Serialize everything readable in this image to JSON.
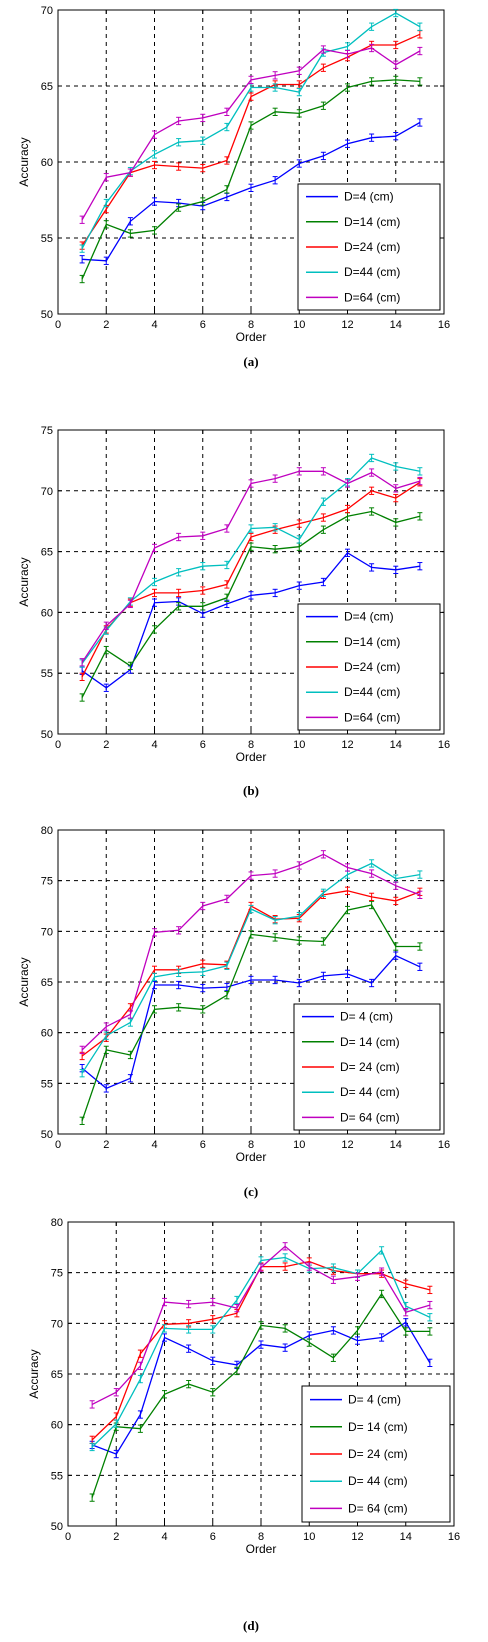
{
  "chart_data": [
    {
      "type": "line",
      "caption": "(a)",
      "xlabel": "Order",
      "ylabel": "Accuracy",
      "xlim": [
        0,
        16
      ],
      "ylim": [
        50,
        70
      ],
      "xticks": [
        0,
        2,
        4,
        6,
        8,
        10,
        12,
        14,
        16
      ],
      "yticks": [
        50,
        55,
        60,
        65,
        70
      ],
      "grid": true,
      "legend": "bottom-right",
      "x": [
        1,
        2,
        3,
        4,
        5,
        6,
        7,
        8,
        9,
        10,
        11,
        12,
        13,
        14,
        15
      ],
      "series": [
        {
          "name": "D=4 (cm)",
          "color": "#0000ff",
          "values": [
            53.6,
            53.5,
            56.1,
            57.4,
            57.3,
            57.1,
            57.7,
            58.3,
            58.8,
            59.9,
            60.4,
            61.2,
            61.6,
            61.7,
            62.6
          ]
        },
        {
          "name": "D=14 (cm)",
          "color": "#008000",
          "values": [
            52.3,
            55.9,
            55.3,
            55.5,
            57.0,
            57.4,
            58.2,
            62.4,
            63.3,
            63.2,
            63.7,
            64.9,
            65.3,
            65.4,
            65.3
          ]
        },
        {
          "name": "D=24 (cm)",
          "color": "#ff0000",
          "values": [
            54.5,
            56.9,
            59.3,
            59.8,
            59.7,
            59.6,
            60.1,
            64.3,
            65.1,
            65.1,
            66.2,
            66.9,
            67.7,
            67.7,
            68.4
          ]
        },
        {
          "name": "D=44 (cm)",
          "color": "#00bfbf",
          "values": [
            54.3,
            57.3,
            59.4,
            60.5,
            61.3,
            61.4,
            62.3,
            64.9,
            64.9,
            64.6,
            67.2,
            67.6,
            68.9,
            69.8,
            68.9
          ]
        },
        {
          "name": "D=64 (cm)",
          "color": "#bf00bf",
          "values": [
            56.2,
            59.0,
            59.3,
            61.8,
            62.7,
            62.9,
            63.3,
            65.4,
            65.7,
            66.0,
            67.4,
            67.1,
            67.5,
            66.4,
            67.3
          ]
        }
      ]
    },
    {
      "type": "line",
      "caption": "(b)",
      "xlabel": "Order",
      "ylabel": "Accuracy",
      "xlim": [
        0,
        16
      ],
      "ylim": [
        50,
        75
      ],
      "xticks": [
        0,
        2,
        4,
        6,
        8,
        10,
        12,
        14,
        16
      ],
      "yticks": [
        50,
        55,
        60,
        65,
        70,
        75
      ],
      "grid": true,
      "legend": "bottom-right",
      "x": [
        1,
        2,
        3,
        4,
        5,
        6,
        7,
        8,
        9,
        10,
        11,
        12,
        13,
        14,
        15
      ],
      "series": [
        {
          "name": "D=4 (cm)",
          "color": "#0000ff",
          "values": [
            55.2,
            53.8,
            55.3,
            60.8,
            60.9,
            59.9,
            60.7,
            61.4,
            61.6,
            62.2,
            62.5,
            64.9,
            63.7,
            63.5,
            63.8
          ]
        },
        {
          "name": "D=14 (cm)",
          "color": "#008000",
          "values": [
            53.0,
            56.9,
            55.6,
            58.6,
            60.5,
            60.5,
            61.2,
            65.4,
            65.2,
            65.4,
            66.8,
            67.9,
            68.3,
            67.4,
            67.9
          ]
        },
        {
          "name": "D=24 (cm)",
          "color": "#ff0000",
          "values": [
            54.7,
            58.6,
            60.8,
            61.6,
            61.6,
            61.8,
            62.3,
            66.2,
            66.8,
            67.3,
            67.8,
            68.5,
            70.0,
            69.4,
            70.7
          ]
        },
        {
          "name": "D=44 (cm)",
          "color": "#00bfbf",
          "values": [
            55.8,
            58.5,
            60.9,
            62.5,
            63.3,
            63.8,
            63.9,
            66.9,
            67.0,
            66.0,
            69.1,
            70.7,
            72.7,
            72.0,
            71.6
          ]
        },
        {
          "name": "D=64 (cm)",
          "color": "#bf00bf",
          "values": [
            55.9,
            58.9,
            60.7,
            65.3,
            66.2,
            66.3,
            66.9,
            70.6,
            71.0,
            71.6,
            71.6,
            70.6,
            71.5,
            70.2,
            70.8
          ]
        }
      ]
    },
    {
      "type": "line",
      "caption": "(c)",
      "xlabel": "Order",
      "ylabel": "Accuracy",
      "xlim": [
        0,
        16
      ],
      "ylim": [
        50,
        80
      ],
      "xticks": [
        0,
        2,
        4,
        6,
        8,
        10,
        12,
        14,
        16
      ],
      "yticks": [
        50,
        55,
        60,
        65,
        70,
        75,
        80
      ],
      "grid": true,
      "legend": "bottom-right",
      "x": [
        1,
        2,
        3,
        4,
        5,
        6,
        7,
        8,
        9,
        10,
        11,
        12,
        13,
        14,
        15
      ],
      "series": [
        {
          "name": "D= 4 (cm)",
          "color": "#0000ff",
          "values": [
            56.5,
            54.5,
            55.5,
            64.7,
            64.7,
            64.4,
            64.5,
            65.2,
            65.2,
            64.9,
            65.6,
            65.8,
            64.9,
            67.6,
            66.5
          ]
        },
        {
          "name": "D= 14 (cm)",
          "color": "#008000",
          "values": [
            51.3,
            58.3,
            57.8,
            62.3,
            62.5,
            62.3,
            63.7,
            69.7,
            69.4,
            69.1,
            69.0,
            72.1,
            72.6,
            68.5,
            68.5
          ]
        },
        {
          "name": "D= 24 (cm)",
          "color": "#ff0000",
          "values": [
            57.7,
            59.5,
            62.5,
            66.2,
            66.2,
            66.8,
            66.7,
            72.5,
            71.2,
            71.3,
            73.6,
            74.0,
            73.4,
            73.0,
            73.9
          ]
        },
        {
          "name": "D= 44 (cm)",
          "color": "#00bfbf",
          "values": [
            56.0,
            59.7,
            61.0,
            65.5,
            65.9,
            66.0,
            66.6,
            72.2,
            71.1,
            71.5,
            73.8,
            75.6,
            76.7,
            75.2,
            75.6
          ]
        },
        {
          "name": "D= 64 (cm)",
          "color": "#bf00bf",
          "values": [
            58.3,
            60.6,
            61.8,
            69.9,
            70.1,
            72.5,
            73.2,
            75.5,
            75.7,
            76.5,
            77.6,
            76.3,
            75.7,
            74.5,
            73.6
          ]
        }
      ]
    },
    {
      "type": "line",
      "caption": "(d)",
      "xlabel": "Order",
      "ylabel": "Accuracy",
      "xlim": [
        0,
        16
      ],
      "ylim": [
        50,
        80
      ],
      "xticks": [
        0,
        2,
        4,
        6,
        8,
        10,
        12,
        14,
        16
      ],
      "yticks": [
        50,
        55,
        60,
        65,
        70,
        75,
        80
      ],
      "grid": true,
      "legend": "bottom-right",
      "x": [
        1,
        2,
        3,
        4,
        5,
        6,
        7,
        8,
        9,
        10,
        11,
        12,
        13,
        14,
        15
      ],
      "series": [
        {
          "name": "D= 4 (cm)",
          "color": "#0000ff",
          "values": [
            58.0,
            57.1,
            61.0,
            68.6,
            67.5,
            66.3,
            65.9,
            67.9,
            67.6,
            68.8,
            69.3,
            68.3,
            68.6,
            70.1,
            66.1
          ]
        },
        {
          "name": "D= 14 (cm)",
          "color": "#008000",
          "values": [
            52.8,
            59.8,
            59.6,
            63.0,
            64.0,
            63.2,
            65.3,
            69.8,
            69.5,
            68.1,
            66.6,
            69.3,
            72.9,
            69.2,
            69.2
          ]
        },
        {
          "name": "D= 24 (cm)",
          "color": "#ff0000",
          "values": [
            58.5,
            60.8,
            67.0,
            69.9,
            70.0,
            70.4,
            71.0,
            75.6,
            75.6,
            76.1,
            75.2,
            74.9,
            74.9,
            73.9,
            73.3
          ]
        },
        {
          "name": "D= 44 (cm)",
          "color": "#00bfbf",
          "values": [
            57.8,
            60.1,
            64.5,
            69.5,
            69.4,
            69.4,
            72.3,
            76.2,
            76.5,
            75.4,
            75.5,
            74.9,
            77.2,
            71.7,
            70.6
          ]
        },
        {
          "name": "D= 64 (cm)",
          "color": "#bf00bf",
          "values": [
            62.0,
            63.2,
            65.8,
            72.1,
            71.9,
            72.1,
            71.5,
            75.5,
            77.6,
            75.6,
            74.3,
            74.6,
            75.1,
            71.1,
            71.8
          ]
        }
      ]
    }
  ]
}
